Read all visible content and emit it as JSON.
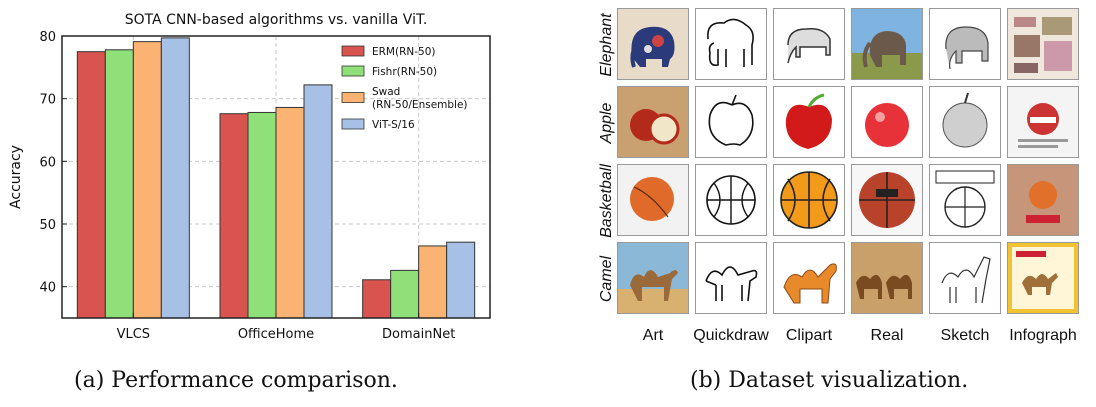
{
  "chart_data": {
    "type": "bar",
    "title": "SOTA CNN-based algorithms vs. vanilla ViT.",
    "xlabel": "",
    "ylabel": "Accuracy",
    "ylim": [
      35,
      80
    ],
    "yticks": [
      40,
      50,
      60,
      70,
      80
    ],
    "categories": [
      "VLCS",
      "OfficeHome",
      "DomainNet"
    ],
    "grid": true,
    "legend_position": "top-right",
    "series": [
      {
        "name": "ERM(RN-50)",
        "color": "#d9534f",
        "values": [
          77.5,
          67.6,
          41.1
        ]
      },
      {
        "name": "Fishr(RN-50)",
        "color": "#90e07a",
        "values": [
          77.8,
          67.8,
          42.6
        ]
      },
      {
        "name": "Swad (RN-50/Ensemble)",
        "name_lines": [
          "Swad",
          "(RN-50/Ensemble)"
        ],
        "color": "#fbb374",
        "values": [
          79.1,
          68.6,
          46.5
        ]
      },
      {
        "name": "ViT-S/16",
        "color": "#a7c0e6",
        "values": [
          79.7,
          72.2,
          47.1
        ]
      }
    ]
  },
  "captions": {
    "a": "(a) Performance comparison.",
    "b": "(b) Dataset visualization."
  },
  "dataset": {
    "rows": [
      "Elephant",
      "Apple",
      "Basketball",
      "Camel"
    ],
    "columns": [
      "Art",
      "Quickdraw",
      "Clipart",
      "Real",
      "Sketch",
      "Infograph"
    ]
  }
}
